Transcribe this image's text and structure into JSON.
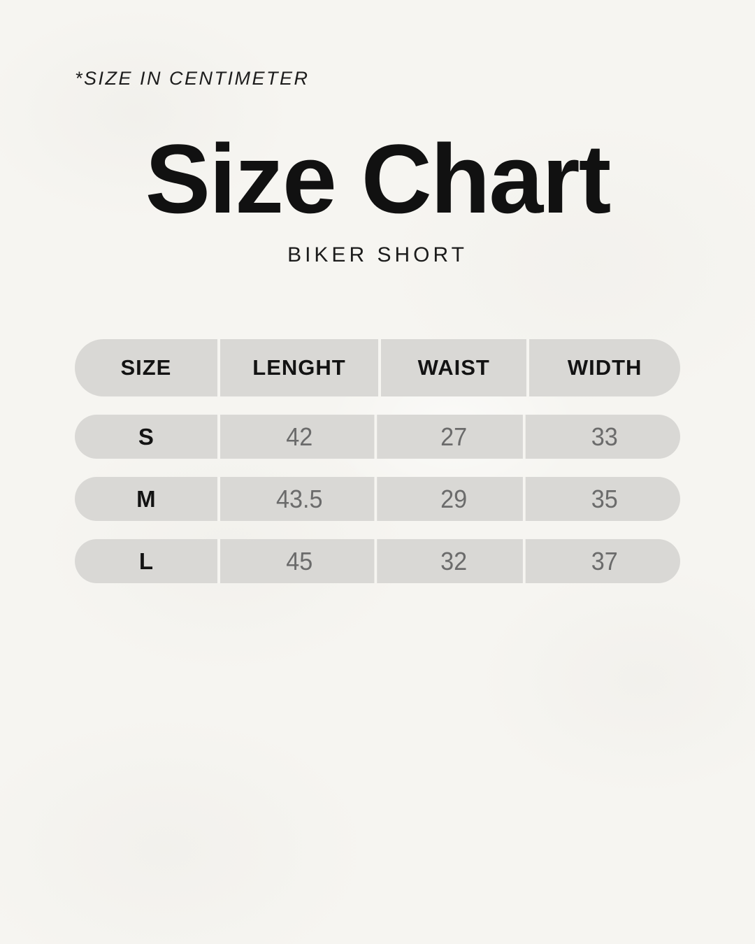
{
  "note": "*SIZE IN CENTIMETER",
  "title": "Size Chart",
  "subtitle": "BIKER SHORT",
  "colors": {
    "background": "#f6f5f1",
    "row_pill": "#d9d8d5",
    "heading_text": "#131313",
    "value_text": "#6b6b6b"
  },
  "chart_data": {
    "type": "table",
    "title": "Size Chart",
    "subtitle": "BIKER SHORT",
    "unit_note": "*SIZE IN CENTIMETER",
    "columns": [
      "SIZE",
      "LENGHT",
      "WAIST",
      "WIDTH"
    ],
    "rows": [
      [
        "S",
        "42",
        "27",
        "33"
      ],
      [
        "M",
        "43.5",
        "29",
        "35"
      ],
      [
        "L",
        "45",
        "32",
        "37"
      ]
    ]
  }
}
